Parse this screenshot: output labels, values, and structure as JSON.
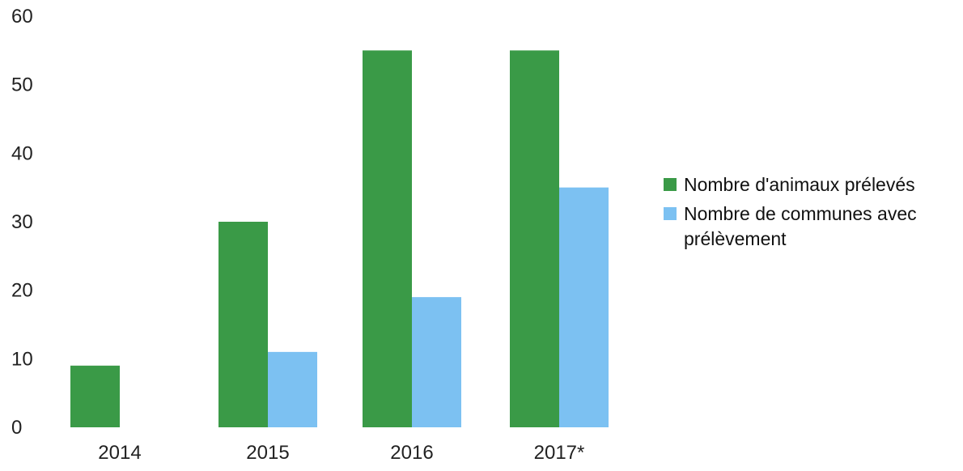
{
  "chart_data": {
    "type": "bar",
    "title": "",
    "xlabel": "",
    "ylabel": "",
    "categories": [
      "2014",
      "2015",
      "2016",
      "2017*"
    ],
    "series": [
      {
        "name": "Nombre d'animaux prélevés",
        "color": "#3a9a47",
        "values": [
          9,
          30,
          55,
          55
        ]
      },
      {
        "name": "Nombre de communes avec prélèvement",
        "name_lines": [
          "Nombre de communes avec",
          "prélèvement"
        ],
        "color": "#7cc1f2",
        "values": [
          0,
          11,
          19,
          35
        ]
      }
    ],
    "ylim": [
      0,
      60
    ],
    "yticks": [
      "0",
      "10",
      "20",
      "30",
      "40",
      "50",
      "60"
    ],
    "grid": false,
    "legend_position": "right"
  }
}
